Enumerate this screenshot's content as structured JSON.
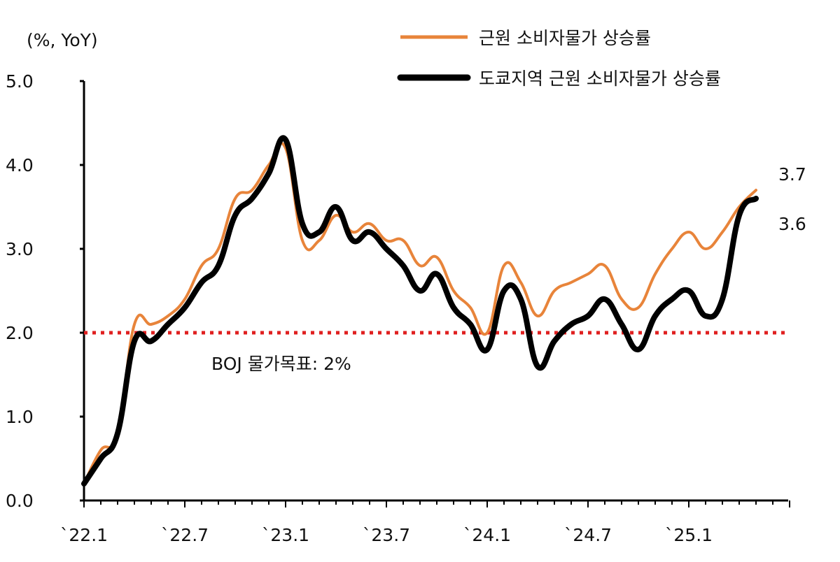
{
  "chart_data": {
    "type": "line",
    "unit_label": "(%, YoY)",
    "ylim": [
      0,
      5
    ],
    "y_ticks": [
      "0.0",
      "1.0",
      "2.0",
      "3.0",
      "4.0",
      "5.0"
    ],
    "x_tick_labels": [
      "`22.1",
      "`22.7",
      "`23.1",
      "`23.7",
      "`24.1",
      "`24.7",
      "`25.1"
    ],
    "x_start": "2022-01",
    "x_end": "2025-06",
    "legend_position": "top-right",
    "series": [
      {
        "name": "근원 소비자물가 상승률",
        "color": "#E8843A",
        "values": [
          0.2,
          0.6,
          0.8,
          2.1,
          2.1,
          2.2,
          2.4,
          2.8,
          3.0,
          3.6,
          3.7,
          4.0,
          4.2,
          3.1,
          3.1,
          3.4,
          3.2,
          3.3,
          3.1,
          3.1,
          2.8,
          2.9,
          2.5,
          2.3,
          2.0,
          2.8,
          2.6,
          2.2,
          2.5,
          2.6,
          2.7,
          2.8,
          2.4,
          2.3,
          2.7,
          3.0,
          3.2,
          3.0,
          3.2,
          3.5,
          3.7
        ]
      },
      {
        "name": "도쿄지역 근원 소비자물가 상승률",
        "color": "#000000",
        "values": [
          0.2,
          0.5,
          0.8,
          1.9,
          1.9,
          2.1,
          2.3,
          2.6,
          2.8,
          3.4,
          3.6,
          3.9,
          4.3,
          3.3,
          3.2,
          3.5,
          3.1,
          3.2,
          3.0,
          2.8,
          2.5,
          2.7,
          2.3,
          2.1,
          1.8,
          2.5,
          2.4,
          1.6,
          1.9,
          2.1,
          2.2,
          2.4,
          2.1,
          1.8,
          2.2,
          2.4,
          2.5,
          2.2,
          2.4,
          3.4,
          3.6
        ]
      }
    ],
    "reference_line": {
      "label": "BOJ 물가목표: 2%",
      "value": 2.0,
      "color": "#E02020"
    },
    "end_labels": [
      "3.7",
      "3.6"
    ],
    "grid": false
  }
}
